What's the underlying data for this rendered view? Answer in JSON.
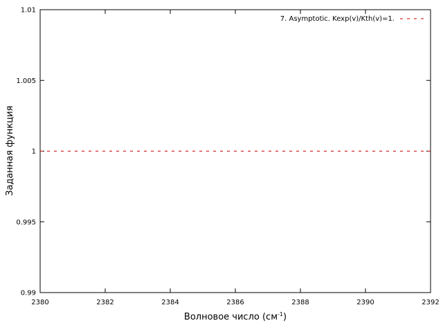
{
  "chart_data": {
    "type": "line",
    "title": "",
    "xlabel": "Волновое число (см",
    "xlabel_sup": "-1",
    "xlabel_suffix": ")",
    "ylabel": "Заданная функция",
    "xlim": [
      2380,
      2392
    ],
    "ylim": [
      0.99,
      1.01
    ],
    "xticks": [
      2380,
      2382,
      2384,
      2386,
      2388,
      2390,
      2392
    ],
    "xtick_labels": [
      "2380",
      "2382",
      "2384",
      "2386",
      "2388",
      "2390",
      "2392"
    ],
    "yticks": [
      0.99,
      0.995,
      1,
      1.005,
      1.01
    ],
    "ytick_labels": [
      "0.99",
      "0.995",
      "1",
      "1.005",
      "1.01"
    ],
    "grid": false,
    "legend_position": "top-right",
    "series": [
      {
        "name": "7. Asymptotic. Kexp(v)/Kth(v)=1.",
        "color": "#cc0000",
        "style": "dashed",
        "x": [
          2380,
          2392
        ],
        "y": [
          1,
          1
        ]
      }
    ]
  }
}
